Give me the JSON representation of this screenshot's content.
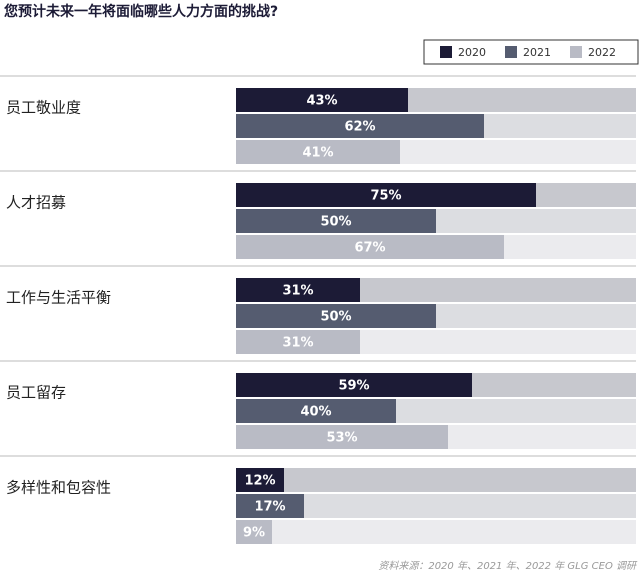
{
  "chart_data": {
    "type": "hbar",
    "title": "您预计未来一年将面临哪些人力方面的挑战?",
    "categories": [
      "员工敬业度",
      "人才招募",
      "工作与生活平衡",
      "员工留存",
      "多样性和包容性"
    ],
    "series": [
      {
        "name": "2020",
        "color": "#1c1b36",
        "track": "#c7c8ce",
        "values": [
          43,
          75,
          31,
          59,
          12
        ],
        "value_labels": [
          "43%",
          "75%",
          "31%",
          "59%",
          "12%"
        ]
      },
      {
        "name": "2021",
        "color": "#555c70",
        "track": "#dcdde1",
        "values": [
          62,
          50,
          50,
          40,
          17
        ],
        "value_labels": [
          "62%",
          "50%",
          "50%",
          "40%",
          "17%"
        ]
      },
      {
        "name": "2022",
        "color": "#b9bbc5",
        "track": "#ebebee",
        "values": [
          41,
          67,
          31,
          53,
          9
        ],
        "value_labels": [
          "41%",
          "67%",
          "31%",
          "53%",
          "9%"
        ]
      }
    ],
    "xlim": [
      0,
      100
    ],
    "source": "资料来源：2020 年、2021 年、2022 年 GLG CEO 调研"
  }
}
